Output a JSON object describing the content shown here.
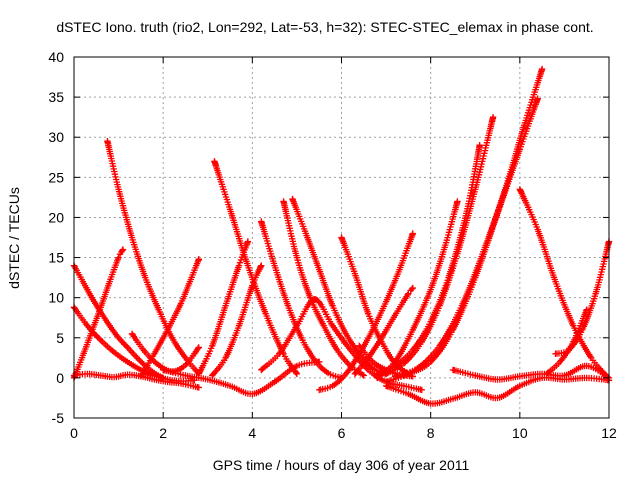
{
  "chart_data": {
    "type": "scatter",
    "title": "dSTEC Iono. truth (rio2, Lon=292, Lat=-53, h=32): STEC-STEC_elemax in phase cont.",
    "xlabel": "GPS time / hours of day 306 of year 2011",
    "ylabel": "dSTEC  / TECUs",
    "xlim": [
      0,
      12
    ],
    "ylim": [
      -5,
      40
    ],
    "xticks": [
      0,
      2,
      4,
      6,
      8,
      10,
      12
    ],
    "yticks": [
      -5,
      0,
      5,
      10,
      15,
      20,
      25,
      30,
      35,
      40
    ],
    "grid": true,
    "marker": "+",
    "series_color": "#ff0000",
    "series": [
      {
        "x": [
          0.0,
          0.3,
          0.6,
          0.9,
          1.2,
          1.5,
          1.8,
          2.1,
          2.4,
          2.8
        ],
        "y": [
          0.3,
          0.5,
          0.3,
          0.1,
          0.4,
          0.2,
          -0.2,
          -0.5,
          -0.7,
          -1.2
        ]
      },
      {
        "x": [
          0.0,
          0.2,
          0.4,
          0.6,
          0.8,
          1.0,
          1.2,
          1.4,
          1.6,
          1.8,
          2.0
        ],
        "y": [
          14.0,
          12.0,
          10.0,
          8.2,
          6.5,
          5.0,
          3.8,
          2.6,
          1.5,
          0.6,
          0.0
        ]
      },
      {
        "x": [
          0.0,
          0.3,
          0.6,
          0.9,
          1.2,
          1.5,
          1.8,
          2.1,
          2.4,
          2.7
        ],
        "y": [
          8.8,
          6.5,
          4.7,
          3.2,
          2.0,
          1.0,
          0.3,
          -0.2,
          -0.4,
          -0.3
        ]
      },
      {
        "x": [
          0.0,
          0.2,
          0.4,
          0.6,
          0.8,
          1.0,
          1.1
        ],
        "y": [
          0.0,
          2.8,
          5.8,
          8.8,
          12.0,
          15.0,
          16.0
        ]
      },
      {
        "x": [
          0.75,
          1.0,
          1.3,
          1.6,
          1.9,
          2.2,
          2.5,
          2.8
        ],
        "y": [
          29.5,
          23.5,
          17.5,
          12.5,
          8.5,
          5.0,
          2.5,
          0.5
        ]
      },
      {
        "x": [
          1.5,
          1.8,
          2.1,
          2.4,
          2.6,
          2.8
        ],
        "y": [
          0.2,
          3.0,
          6.0,
          9.3,
          12.0,
          14.8
        ]
      },
      {
        "x": [
          1.3,
          1.6,
          1.9,
          2.2,
          2.5,
          2.8
        ],
        "y": [
          5.5,
          3.2,
          1.6,
          0.8,
          1.6,
          3.8
        ]
      },
      {
        "x": [
          2.0,
          2.5,
          3.0,
          3.5,
          4.0,
          4.5,
          5.0,
          5.5
        ],
        "y": [
          1.0,
          0.3,
          -0.2,
          -1.0,
          -2.0,
          -0.5,
          1.5,
          2.0
        ]
      },
      {
        "x": [
          2.8,
          3.1,
          3.4,
          3.7,
          3.9
        ],
        "y": [
          0.5,
          4.0,
          9.0,
          14.0,
          17.0
        ]
      },
      {
        "x": [
          3.1,
          3.4,
          3.7,
          4.0,
          4.2
        ],
        "y": [
          0.3,
          2.5,
          6.5,
          11.5,
          14.0
        ]
      },
      {
        "x": [
          3.15,
          3.5,
          3.9,
          4.3,
          4.7,
          5.0
        ],
        "y": [
          27.0,
          21.0,
          14.0,
          8.0,
          3.0,
          0.5
        ]
      },
      {
        "x": [
          4.2,
          4.5,
          4.8,
          5.1,
          5.4,
          5.7,
          6.0
        ],
        "y": [
          19.5,
          14.0,
          9.0,
          5.0,
          2.2,
          0.6,
          0.0
        ]
      },
      {
        "x": [
          4.7,
          5.0,
          5.3,
          5.6,
          5.9,
          6.2,
          6.5
        ],
        "y": [
          22.0,
          15.0,
          10.0,
          6.5,
          3.5,
          1.5,
          0.3
        ]
      },
      {
        "x": [
          4.9,
          5.2,
          5.5,
          5.8,
          6.1,
          6.4,
          6.7,
          7.0
        ],
        "y": [
          22.3,
          18.0,
          13.5,
          9.0,
          5.5,
          3.0,
          1.2,
          0.5
        ]
      },
      {
        "x": [
          4.2,
          4.6,
          5.0,
          5.4,
          5.8,
          6.2,
          6.6,
          7.0,
          7.4,
          7.8
        ],
        "y": [
          1.0,
          3.0,
          6.5,
          9.8,
          6.5,
          3.5,
          1.0,
          -0.5,
          -1.0,
          -1.5
        ]
      },
      {
        "x": [
          5.5,
          5.8,
          6.1,
          6.4,
          6.7,
          7.0,
          7.3,
          7.6
        ],
        "y": [
          -1.5,
          -1.0,
          0.5,
          3.0,
          6.0,
          9.5,
          13.5,
          18.0
        ]
      },
      {
        "x": [
          6.0,
          6.3,
          6.6,
          6.9,
          7.2,
          7.5
        ],
        "y": [
          17.5,
          13.0,
          8.0,
          4.5,
          1.8,
          0.5
        ]
      },
      {
        "x": [
          6.3,
          6.6,
          6.9,
          7.2,
          7.5,
          7.6
        ],
        "y": [
          0.5,
          2.5,
          5.0,
          7.8,
          10.5,
          11.2
        ]
      },
      {
        "x": [
          6.4,
          6.7,
          7.0,
          7.3,
          7.6
        ],
        "y": [
          4.0,
          2.0,
          1.0,
          0.4,
          0.2
        ]
      },
      {
        "x": [
          6.8,
          7.2,
          7.6,
          8.0,
          8.3,
          8.6
        ],
        "y": [
          0.0,
          2.0,
          6.0,
          11.0,
          16.0,
          22.0
        ]
      },
      {
        "x": [
          6.8,
          7.2,
          7.6,
          8.0,
          8.4,
          8.8,
          9.1
        ],
        "y": [
          0.5,
          1.5,
          3.5,
          7.0,
          12.5,
          20.5,
          29.0
        ]
      },
      {
        "x": [
          7.0,
          7.5,
          8.0,
          8.5,
          9.0,
          9.5,
          10.0,
          10.4
        ],
        "y": [
          -0.5,
          0.5,
          2.0,
          6.0,
          12.5,
          20.5,
          28.5,
          34.8
        ]
      },
      {
        "x": [
          7.2,
          7.7,
          8.2,
          8.7,
          9.2,
          9.7,
          10.1,
          10.5
        ],
        "y": [
          0.2,
          1.2,
          4.0,
          9.0,
          16.0,
          24.0,
          31.5,
          38.5
        ]
      },
      {
        "x": [
          7.0,
          7.4,
          7.8,
          8.2,
          8.6,
          9.0,
          9.4
        ],
        "y": [
          0.5,
          1.8,
          4.5,
          9.0,
          15.5,
          23.5,
          32.5
        ]
      },
      {
        "x": [
          7.0,
          7.5,
          8.0,
          8.5,
          9.0,
          9.5,
          10.0,
          10.5,
          11.0,
          11.5,
          12.0
        ],
        "y": [
          -1.0,
          -2.0,
          -3.2,
          -2.6,
          -1.8,
          -2.5,
          -1.0,
          0.0,
          -0.2,
          0.0,
          -0.3
        ]
      },
      {
        "x": [
          8.5,
          9.0,
          9.5,
          10.0,
          10.5,
          11.0,
          11.5,
          12.0
        ],
        "y": [
          1.0,
          0.3,
          -0.2,
          0.2,
          0.5,
          0.3,
          1.5,
          0.0
        ]
      },
      {
        "x": [
          10.0,
          10.4,
          10.8,
          11.2,
          11.6,
          11.9
        ],
        "y": [
          23.5,
          18.5,
          12.0,
          6.5,
          2.5,
          0.5
        ]
      },
      {
        "x": [
          10.8,
          11.1,
          11.4,
          11.7,
          12.0
        ],
        "y": [
          3.0,
          3.5,
          6.0,
          10.5,
          17.0
        ]
      },
      {
        "x": [
          10.6,
          10.9,
          11.2,
          11.5
        ],
        "y": [
          0.5,
          2.0,
          4.5,
          8.5
        ]
      }
    ]
  }
}
